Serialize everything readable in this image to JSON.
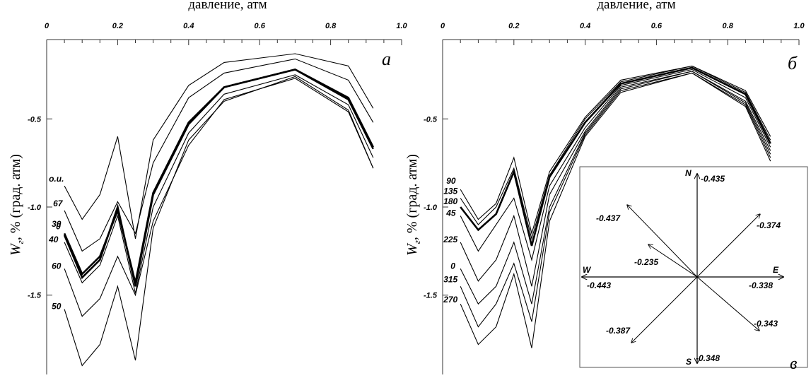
{
  "figure": {
    "panel_a": {
      "panel_label": "а",
      "xlabel": "давление, атм",
      "ylabel_main": "W",
      "ylabel_sub": "г",
      "ylabel_rest": ", % (град. атм)",
      "xticks": [
        "0",
        "0.2",
        "0.4",
        "0.6",
        "0.8",
        "1.0"
      ],
      "yticks": [
        "-0.5",
        "-1.0",
        "-1.5"
      ]
    },
    "panel_b": {
      "panel_label": "б",
      "xlabel": "давление, атм",
      "ylabel_main": "W",
      "ylabel_sub": "г",
      "ylabel_rest": ", % (град. атм)",
      "xticks": [
        "0",
        "0.2",
        "0.4",
        "0.6",
        "0.8",
        "1.0"
      ],
      "yticks": [
        "-0.5",
        "-1.0",
        "-1.5"
      ]
    },
    "panel_v": {
      "panel_label": "в",
      "directions": {
        "N": {
          "label": "N",
          "value": "-0.435"
        },
        "E": {
          "label": "E",
          "value": "-0.338"
        },
        "S": {
          "label": "S",
          "value": "-0.348"
        },
        "W": {
          "label": "W",
          "value": "-0.443"
        }
      },
      "diagonals": {
        "NE": "-0.374",
        "SE": "-0.343",
        "SW": "-0.387",
        "NW": "-0.437",
        "NW_inner": "-0.235"
      }
    }
  },
  "chart_data": [
    {
      "type": "line",
      "panel": "а",
      "xlabel": "давление, атм",
      "ylabel": "Wг, % (град. атм)",
      "xlim": [
        0,
        1.0
      ],
      "ylim": [
        -1.95,
        -0.05
      ],
      "x": [
        0.05,
        0.1,
        0.15,
        0.2,
        0.25,
        0.3,
        0.4,
        0.5,
        0.7,
        0.85,
        0.92
      ],
      "series": [
        {
          "name": "o.u.",
          "values": [
            -0.88,
            -1.07,
            -0.93,
            -0.6,
            -1.18,
            -0.62,
            -0.31,
            -0.18,
            -0.13,
            -0.2,
            -0.44
          ],
          "bold": false
        },
        {
          "name": "67",
          "values": [
            -1.02,
            -1.25,
            -1.18,
            -0.97,
            -1.15,
            -0.75,
            -0.38,
            -0.24,
            -0.16,
            -0.28,
            -0.52
          ],
          "bold": false
        },
        {
          "name": "0",
          "values": [
            -1.15,
            -1.38,
            -1.28,
            -1.02,
            -1.43,
            -0.92,
            -0.52,
            -0.32,
            -0.22,
            -0.38,
            -0.66
          ],
          "bold": true
        },
        {
          "name": "30",
          "values": [
            -1.16,
            -1.4,
            -1.3,
            -1.0,
            -1.45,
            -0.93,
            -0.53,
            -0.32,
            -0.22,
            -0.39,
            -0.67
          ],
          "bold": true
        },
        {
          "name": "40",
          "values": [
            -1.2,
            -1.43,
            -1.33,
            -1.05,
            -1.49,
            -1.0,
            -0.58,
            -0.36,
            -0.25,
            -0.42,
            -0.72
          ],
          "bold": false
        },
        {
          "name": "60",
          "values": [
            -1.35,
            -1.62,
            -1.52,
            -1.28,
            -1.5,
            -1.08,
            -0.65,
            -0.39,
            -0.27,
            -0.46,
            -0.78
          ],
          "bold": false
        },
        {
          "name": "50",
          "values": [
            -1.58,
            -1.9,
            -1.78,
            -1.45,
            -1.87,
            -1.12,
            -0.62,
            -0.4,
            -0.26,
            -0.45,
            -0.78
          ],
          "bold": false
        }
      ]
    },
    {
      "type": "line",
      "panel": "б",
      "xlabel": "давление, атм",
      "ylabel": "Wг, % (град. атм)",
      "xlim": [
        0,
        1.0
      ],
      "ylim": [
        -1.95,
        -0.05
      ],
      "x": [
        0.05,
        0.1,
        0.15,
        0.2,
        0.25,
        0.3,
        0.4,
        0.5,
        0.7,
        0.85,
        0.92
      ],
      "series": [
        {
          "name": "90",
          "values": [
            -0.9,
            -1.07,
            -0.98,
            -0.72,
            -1.15,
            -0.8,
            -0.49,
            -0.28,
            -0.2,
            -0.34,
            -0.6
          ],
          "bold": false
        },
        {
          "name": "135",
          "values": [
            -0.95,
            -1.1,
            -1.0,
            -0.78,
            -1.18,
            -0.82,
            -0.5,
            -0.29,
            -0.2,
            -0.35,
            -0.62
          ],
          "bold": false
        },
        {
          "name": "180",
          "values": [
            -1.0,
            -1.13,
            -1.04,
            -0.8,
            -1.22,
            -0.83,
            -0.52,
            -0.3,
            -0.21,
            -0.36,
            -0.64
          ],
          "bold": true
        },
        {
          "name": "45",
          "values": [
            -1.05,
            -1.25,
            -1.1,
            -0.95,
            -1.3,
            -0.88,
            -0.55,
            -0.31,
            -0.22,
            -0.38,
            -0.66
          ],
          "bold": false
        },
        {
          "name": "225",
          "values": [
            -1.2,
            -1.42,
            -1.3,
            -1.05,
            -1.45,
            -0.93,
            -0.57,
            -0.32,
            -0.23,
            -0.4,
            -0.68
          ],
          "bold": false
        },
        {
          "name": "0",
          "values": [
            -1.35,
            -1.55,
            -1.45,
            -1.2,
            -1.55,
            -1.0,
            -0.58,
            -0.33,
            -0.23,
            -0.41,
            -0.7
          ],
          "bold": false
        },
        {
          "name": "315",
          "values": [
            -1.45,
            -1.68,
            -1.55,
            -1.32,
            -1.65,
            -1.03,
            -0.59,
            -0.34,
            -0.24,
            -0.42,
            -0.72
          ],
          "bold": false
        },
        {
          "name": "270",
          "values": [
            -1.55,
            -1.78,
            -1.68,
            -1.38,
            -1.8,
            -1.08,
            -0.6,
            -0.35,
            -0.24,
            -0.43,
            -0.74
          ],
          "bold": false
        }
      ]
    }
  ]
}
